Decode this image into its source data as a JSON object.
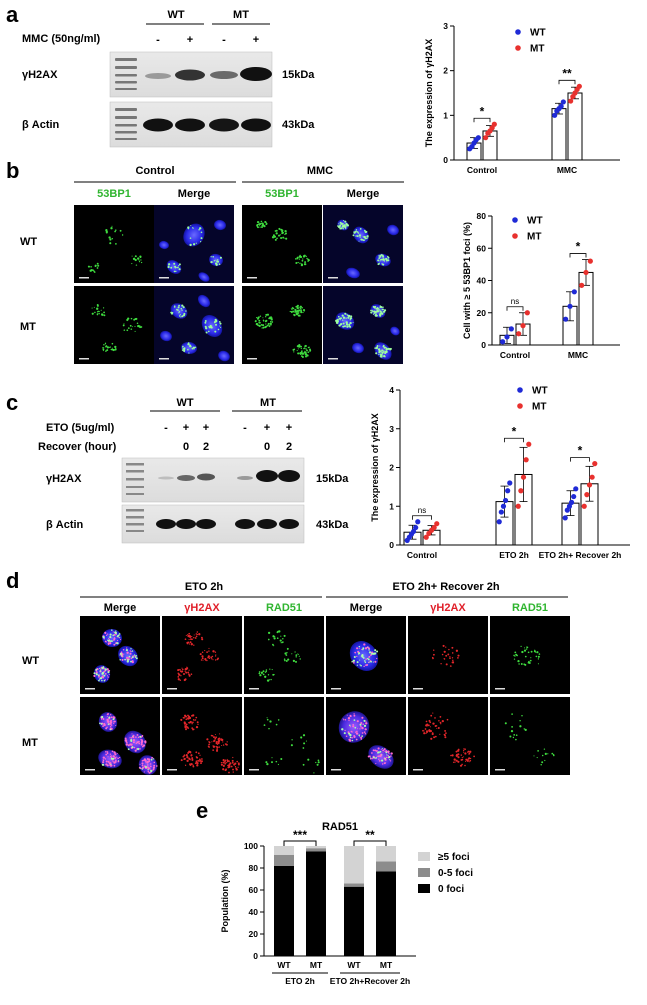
{
  "panels": {
    "a": {
      "letter": "a",
      "groups": [
        "WT",
        "MT"
      ],
      "treatment_label": "MMC (50ng/ml)",
      "treatment_marks": [
        "-",
        "+",
        "-",
        "+"
      ],
      "rows": [
        {
          "label": "γH2AX",
          "size": "15kDa"
        },
        {
          "label": "β Actin",
          "size": "43kDa"
        }
      ]
    },
    "b": {
      "letter": "b",
      "conditions": [
        "Control",
        "MMC"
      ],
      "columns": [
        "53BP1",
        "Merge",
        "53BP1",
        "Merge"
      ],
      "rows": [
        "WT",
        "MT"
      ],
      "colors": {
        "green": "#2fb52f"
      }
    },
    "c": {
      "letter": "c",
      "groups": [
        "WT",
        "MT"
      ],
      "treatment_label": "ETO (5ug/ml)",
      "recover_label": "Recover (hour)",
      "treatment_marks": [
        "-",
        "+",
        "+",
        "-",
        "+",
        "+"
      ],
      "recover_marks": [
        "0",
        "2",
        "0",
        "2"
      ],
      "rows": [
        {
          "label": "γH2AX",
          "size": "15kDa"
        },
        {
          "label": "β Actin",
          "size": "43kDa"
        }
      ]
    },
    "d": {
      "letter": "d",
      "conditions": [
        "ETO 2h",
        "ETO 2h+ Recover 2h"
      ],
      "columns": [
        "Merge",
        "γH2AX",
        "RAD51",
        "Merge",
        "γH2AX",
        "RAD51"
      ],
      "rows": [
        "WT",
        "MT"
      ],
      "colors": {
        "red": "#e0202a",
        "green": "#2fb52f"
      }
    },
    "e": {
      "letter": "e",
      "subgroups": [
        "ETO 2h",
        "ETO 2h+Recover 2h"
      ]
    }
  },
  "chart_data": [
    {
      "panel": "a",
      "type": "bar",
      "categories": [
        "Control",
        "MMC"
      ],
      "ylabel": "The expression of γH2AX",
      "ylim": [
        0,
        3
      ],
      "yticks": [
        0,
        1,
        2,
        3
      ],
      "legend": {
        "position": "top-right",
        "entries": [
          "WT",
          "MT"
        ]
      },
      "series": [
        {
          "name": "WT",
          "color": "#1f2ad6",
          "values": [
            0.38,
            1.15
          ],
          "errors": [
            0.12,
            0.12
          ],
          "points": [
            [
              0.25,
              0.3,
              0.38,
              0.45,
              0.5
            ],
            [
              1.0,
              1.1,
              1.15,
              1.2,
              1.3
            ]
          ]
        },
        {
          "name": "MT",
          "color": "#e8312e",
          "values": [
            0.65,
            1.5
          ],
          "errors": [
            0.12,
            0.13
          ],
          "points": [
            [
              0.5,
              0.6,
              0.65,
              0.72,
              0.8
            ],
            [
              1.32,
              1.42,
              1.5,
              1.58,
              1.65
            ]
          ]
        }
      ],
      "significance": [
        "*",
        "**"
      ]
    },
    {
      "panel": "b",
      "type": "bar",
      "categories": [
        "Control",
        "MMC"
      ],
      "ylabel": "Cell with ≥ 5 53BP1 foci (%)",
      "ylim": [
        0,
        80
      ],
      "yticks": [
        0,
        20,
        40,
        60,
        80
      ],
      "legend": {
        "position": "top-right",
        "entries": [
          "WT",
          "MT"
        ]
      },
      "series": [
        {
          "name": "WT",
          "color": "#1f2ad6",
          "values": [
            6,
            24
          ],
          "errors": [
            5,
            9
          ],
          "points": [
            [
              2,
              5,
              10
            ],
            [
              16,
              24,
              33
            ]
          ]
        },
        {
          "name": "MT",
          "color": "#e8312e",
          "values": [
            13,
            45
          ],
          "errors": [
            7,
            8
          ],
          "points": [
            [
              7,
              12,
              20
            ],
            [
              37,
              45,
              52
            ]
          ]
        }
      ],
      "significance": [
        "ns",
        "*"
      ]
    },
    {
      "panel": "c",
      "type": "bar",
      "categories": [
        "Control",
        "ETO 2h",
        "ETO 2h+ Recover 2h"
      ],
      "ylabel": "The expression of γH2AX",
      "ylim": [
        0,
        4
      ],
      "yticks": [
        0,
        1,
        2,
        3,
        4
      ],
      "legend": {
        "position": "top-right",
        "entries": [
          "WT",
          "MT"
        ]
      },
      "series": [
        {
          "name": "WT",
          "color": "#1f2ad6",
          "values": [
            0.33,
            1.12,
            1.08
          ],
          "errors": [
            0.18,
            0.4,
            0.32
          ],
          "points": [
            [
              0.12,
              0.2,
              0.28,
              0.35,
              0.45,
              0.6
            ],
            [
              0.6,
              0.85,
              1.0,
              1.15,
              1.4,
              1.6
            ],
            [
              0.7,
              0.9,
              1.0,
              1.1,
              1.25,
              1.45
            ]
          ]
        },
        {
          "name": "MT",
          "color": "#e8312e",
          "values": [
            0.38,
            1.82,
            1.58
          ],
          "errors": [
            0.12,
            0.7,
            0.45
          ],
          "points": [
            [
              0.2,
              0.3,
              0.38,
              0.45,
              0.55
            ],
            [
              1.0,
              1.4,
              1.75,
              2.2,
              2.6
            ],
            [
              1.0,
              1.3,
              1.55,
              1.75,
              2.1
            ]
          ]
        }
      ],
      "significance": [
        "ns",
        "*",
        "*"
      ]
    },
    {
      "panel": "e",
      "type": "bar",
      "stacked": true,
      "title": "RAD51",
      "categories": [
        "WT",
        "MT",
        "WT",
        "MT"
      ],
      "ylabel": "Population (%)",
      "ylim": [
        0,
        100
      ],
      "yticks": [
        0,
        20,
        40,
        60,
        80,
        100
      ],
      "legend": {
        "position": "right",
        "entries": [
          "≥5 foci",
          "0-5 foci",
          "0 foci"
        ]
      },
      "series": [
        {
          "name": "0 foci",
          "color": "#000000",
          "values": [
            82,
            95,
            63,
            77
          ]
        },
        {
          "name": "0-5 foci",
          "color": "#8c8c8c",
          "values": [
            10,
            3,
            3,
            9
          ]
        },
        {
          "name": "≥5 foci",
          "color": "#d3d3d3",
          "values": [
            8,
            2,
            34,
            14
          ]
        }
      ],
      "significance": [
        "***",
        "**"
      ]
    }
  ]
}
